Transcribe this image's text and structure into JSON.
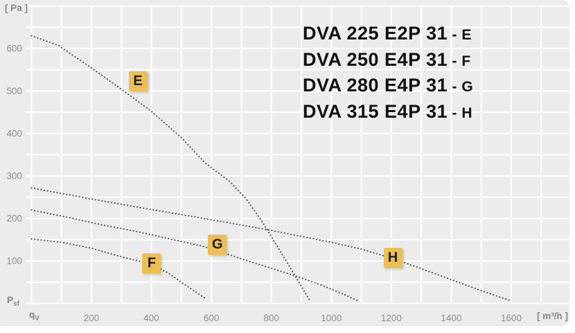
{
  "colors": {
    "panel_bg": "#ececec",
    "grid": "#ffffff",
    "curve": "#4b4b4b",
    "tick_text": "#8d8d8d",
    "label_box_bg": "#edbe52",
    "label_box_text": "#1d1d1d",
    "legend_text": "#111111"
  },
  "legend": {
    "separator": " - "
  },
  "axes": {
    "y_unit": "[ Pa ]",
    "x_unit": "[ m³/h ]",
    "pressure_symbol": "P",
    "pressure_sub": "sf",
    "flow_symbol": "q",
    "flow_sub": "V"
  },
  "chart_data": {
    "type": "line",
    "line_style": "dotted",
    "title": "",
    "xlabel": "qV [m³/h]",
    "ylabel": "Psf [Pa]",
    "xlim": [
      0,
      1750
    ],
    "ylim": [
      0,
      700
    ],
    "grid": {
      "on": true,
      "x_step": 100,
      "y_step": 50,
      "x_max": 1700,
      "y_max": 700
    },
    "x_ticks": [
      200,
      400,
      600,
      800,
      1000,
      1200,
      1400,
      1600
    ],
    "y_ticks": [
      100,
      200,
      300,
      400,
      500,
      600
    ],
    "legend_position": "top-right",
    "series": [
      {
        "name": "DVA 225 E2P 31",
        "code": "E",
        "label_at": [
          355,
          522
        ],
        "points": [
          [
            0,
            630
          ],
          [
            90,
            607
          ],
          [
            200,
            554
          ],
          [
            300,
            504
          ],
          [
            400,
            452
          ],
          [
            500,
            390
          ],
          [
            580,
            330
          ],
          [
            660,
            288
          ],
          [
            715,
            247
          ],
          [
            770,
            192
          ],
          [
            820,
            134
          ],
          [
            875,
            70
          ],
          [
            927,
            8
          ]
        ]
      },
      {
        "name": "DVA 250 E4P 31",
        "code": "F",
        "label_at": [
          401,
          95
        ],
        "points": [
          [
            0,
            152
          ],
          [
            100,
            144
          ],
          [
            200,
            130
          ],
          [
            310,
            108
          ],
          [
            400,
            93
          ],
          [
            460,
            70
          ],
          [
            510,
            45
          ],
          [
            550,
            26
          ],
          [
            581,
            11
          ]
        ]
      },
      {
        "name": "DVA 280 E4P 31",
        "code": "G",
        "label_at": [
          620,
          139
        ],
        "points": [
          [
            0,
            220
          ],
          [
            120,
            203
          ],
          [
            235,
            185
          ],
          [
            360,
            168
          ],
          [
            480,
            149
          ],
          [
            565,
            136
          ],
          [
            620,
            124
          ],
          [
            700,
            105
          ],
          [
            790,
            85
          ],
          [
            880,
            65
          ],
          [
            960,
            45
          ],
          [
            1030,
            25
          ],
          [
            1089,
            6
          ]
        ]
      },
      {
        "name": "DVA 315 E4P 31",
        "code": "H",
        "label_at": [
          1205,
          108
        ],
        "points": [
          [
            0,
            272
          ],
          [
            200,
            246
          ],
          [
            400,
            221
          ],
          [
            600,
            197
          ],
          [
            800,
            172
          ],
          [
            1000,
            144
          ],
          [
            1100,
            128
          ],
          [
            1205,
            106
          ],
          [
            1300,
            82
          ],
          [
            1400,
            56
          ],
          [
            1500,
            30
          ],
          [
            1600,
            6
          ]
        ]
      }
    ]
  }
}
